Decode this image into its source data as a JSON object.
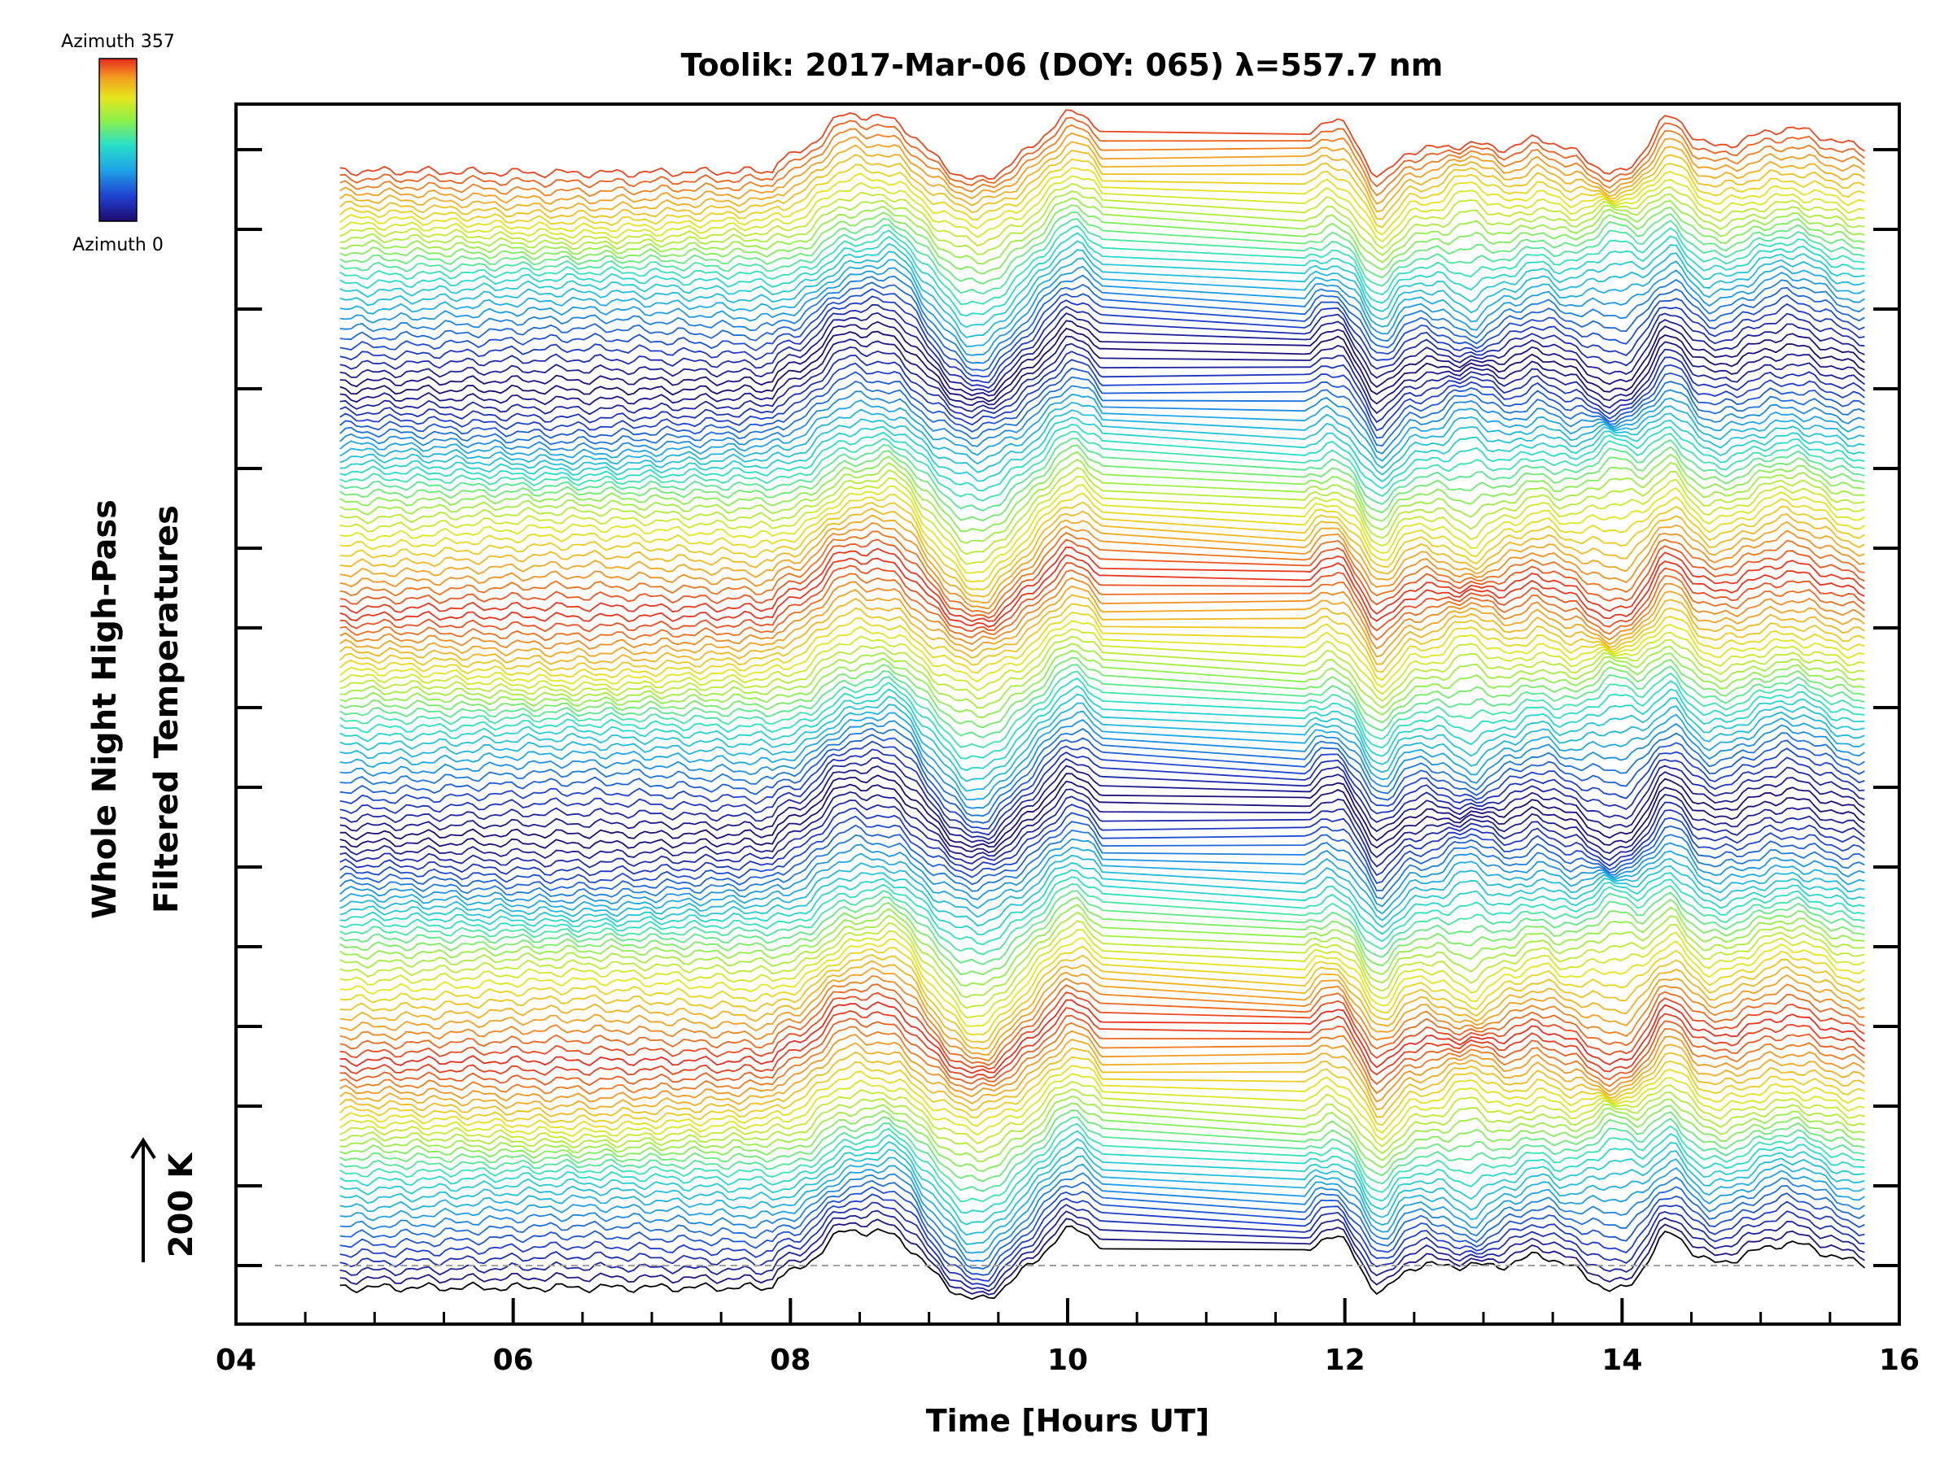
{
  "chart_data": {
    "type": "line",
    "title": "Toolik: 2017-Mar-06 (DOY: 065) λ=557.7 nm",
    "xlabel": "Time [Hours UT]",
    "ylabel_line1": "Whole Night High-Pass",
    "ylabel_line2": "Filtered Temperatures",
    "xlim": [
      4,
      16
    ],
    "x_ticks": [
      "04",
      "06",
      "08",
      "10",
      "12",
      "14",
      "16"
    ],
    "x_tick_values": [
      4,
      6,
      8,
      10,
      12,
      14,
      16
    ],
    "scale_bar_label": "200 K",
    "colorbar": {
      "top_label": "Azimuth 357",
      "bottom_label": "Azimuth 0",
      "colors": [
        "#1e0a6e",
        "#1f3fd0",
        "#1fa6e8",
        "#28e0c8",
        "#8ef04a",
        "#e6e61c",
        "#f4a020",
        "#e8281e"
      ]
    },
    "data_range_hours": [
      4.75,
      15.75
    ],
    "data_gap_hours": [
      10.25,
      11.7
    ],
    "num_traces": 144,
    "trace_groups": 5,
    "baseline_color": "#a0a0a0"
  }
}
